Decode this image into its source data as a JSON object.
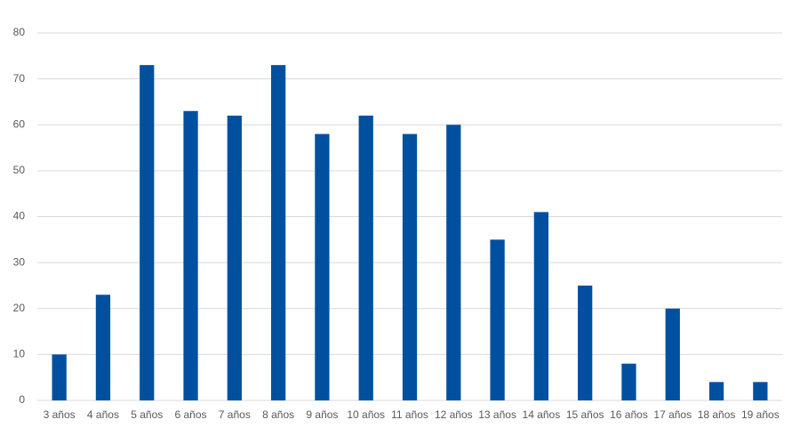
{
  "chart_data": {
    "type": "bar",
    "categories": [
      "3 años",
      "4 años",
      "5 años",
      "6 años",
      "7 años",
      "8 años",
      "9 años",
      "10 años",
      "11 años",
      "12 años",
      "13 años",
      "14 años",
      "15 años",
      "16 años",
      "17 años",
      "18 años",
      "19 años"
    ],
    "values": [
      10,
      23,
      73,
      63,
      62,
      73,
      58,
      62,
      58,
      60,
      35,
      41,
      25,
      8,
      20,
      4,
      4
    ],
    "color": "#0050a0",
    "ylim": [
      0,
      80
    ],
    "yticks": [
      0,
      10,
      20,
      30,
      40,
      50,
      60,
      70,
      80
    ],
    "grid": true
  }
}
